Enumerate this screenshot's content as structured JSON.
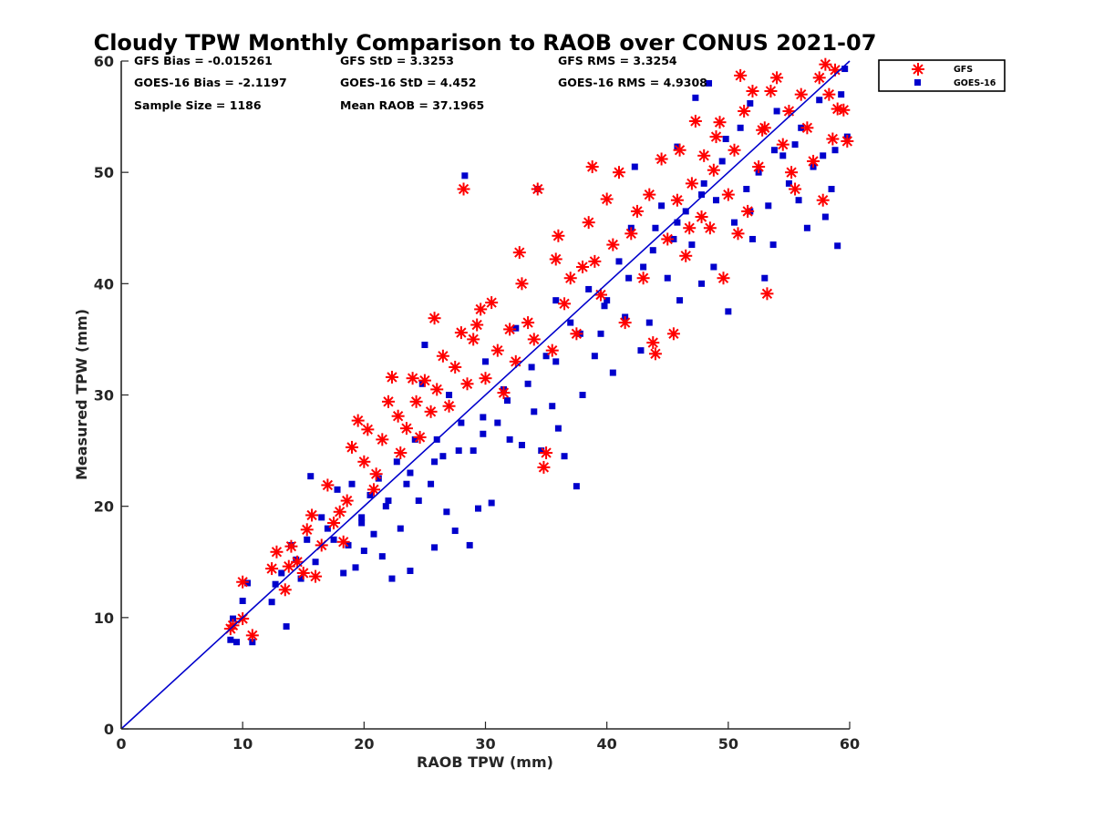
{
  "chart_data": {
    "type": "scatter",
    "title": "Cloudy TPW Monthly Comparison to RAOB over CONUS 2021-07",
    "xlabel": "RAOB TPW (mm)",
    "ylabel": "Measured TPW (mm)",
    "xlim": [
      0,
      60
    ],
    "ylim": [
      0,
      60
    ],
    "xticks": [
      "0",
      "10",
      "20",
      "30",
      "40",
      "50",
      "60"
    ],
    "yticks": [
      "0",
      "10",
      "20",
      "30",
      "40",
      "50",
      "60"
    ],
    "grid": false,
    "legend_position": "top-right-outside",
    "reference_line": {
      "type": "one-to-one",
      "color": "#0000cc",
      "from": [
        0,
        0
      ],
      "to": [
        60,
        60
      ]
    },
    "stats": {
      "gfs_bias": "GFS Bias = -0.015261",
      "goes_bias": "GOES-16 Bias = -2.1197",
      "sample_size": "Sample Size = 1186",
      "gfs_std": "GFS StD = 3.3253",
      "goes_std": "GOES-16 StD = 4.452",
      "mean_raob": "Mean RAOB = 37.1965",
      "gfs_rms": "GFS RMS = 3.3254",
      "goes_rms": "GOES-16 RMS = 4.9308"
    },
    "series": [
      {
        "name": "GFS",
        "marker": "asterisk",
        "color": "#ff0000",
        "points": [
          [
            9.0,
            9.0
          ],
          [
            9.2,
            9.3
          ],
          [
            10.0,
            13.2
          ],
          [
            10.0,
            9.9
          ],
          [
            10.8,
            8.4
          ],
          [
            12.4,
            14.4
          ],
          [
            12.8,
            15.9
          ],
          [
            13.5,
            12.5
          ],
          [
            13.8,
            14.6
          ],
          [
            14.0,
            16.4
          ],
          [
            14.5,
            15.0
          ],
          [
            15.0,
            14.0
          ],
          [
            15.3,
            17.9
          ],
          [
            15.7,
            19.2
          ],
          [
            16.0,
            13.7
          ],
          [
            16.5,
            16.5
          ],
          [
            17.0,
            21.9
          ],
          [
            17.5,
            18.5
          ],
          [
            18.0,
            19.5
          ],
          [
            18.3,
            16.8
          ],
          [
            18.6,
            20.5
          ],
          [
            19.0,
            25.3
          ],
          [
            19.5,
            27.7
          ],
          [
            20.0,
            24.0
          ],
          [
            20.3,
            26.9
          ],
          [
            20.8,
            21.5
          ],
          [
            21.0,
            22.9
          ],
          [
            21.5,
            26.0
          ],
          [
            22.0,
            29.4
          ],
          [
            22.3,
            31.6
          ],
          [
            22.8,
            28.1
          ],
          [
            23.0,
            24.8
          ],
          [
            23.5,
            27.0
          ],
          [
            24.0,
            31.5
          ],
          [
            24.3,
            29.4
          ],
          [
            24.6,
            26.2
          ],
          [
            25.0,
            31.3
          ],
          [
            25.5,
            28.5
          ],
          [
            25.8,
            36.9
          ],
          [
            26.0,
            30.5
          ],
          [
            26.5,
            33.5
          ],
          [
            27.0,
            29.0
          ],
          [
            27.5,
            32.5
          ],
          [
            28.0,
            35.6
          ],
          [
            28.2,
            48.5
          ],
          [
            28.5,
            31.0
          ],
          [
            29.0,
            35.0
          ],
          [
            29.3,
            36.3
          ],
          [
            29.6,
            37.7
          ],
          [
            30.0,
            31.5
          ],
          [
            30.5,
            38.3
          ],
          [
            31.0,
            34.0
          ],
          [
            31.5,
            30.2
          ],
          [
            32.0,
            35.9
          ],
          [
            32.5,
            33.0
          ],
          [
            32.8,
            42.8
          ],
          [
            33.0,
            40.0
          ],
          [
            33.5,
            36.5
          ],
          [
            34.0,
            35.0
          ],
          [
            34.3,
            48.5
          ],
          [
            34.8,
            23.5
          ],
          [
            35.0,
            24.8
          ],
          [
            35.5,
            34.0
          ],
          [
            35.8,
            42.2
          ],
          [
            36.0,
            44.3
          ],
          [
            36.5,
            38.2
          ],
          [
            37.0,
            40.5
          ],
          [
            37.5,
            35.5
          ],
          [
            38.0,
            41.5
          ],
          [
            38.5,
            45.5
          ],
          [
            38.8,
            50.5
          ],
          [
            39.0,
            42.0
          ],
          [
            39.5,
            39.0
          ],
          [
            40.0,
            47.6
          ],
          [
            40.5,
            43.5
          ],
          [
            41.0,
            50.0
          ],
          [
            41.5,
            36.5
          ],
          [
            42.0,
            44.5
          ],
          [
            42.5,
            46.5
          ],
          [
            43.0,
            40.5
          ],
          [
            43.5,
            48.0
          ],
          [
            43.8,
            34.7
          ],
          [
            44.0,
            33.7
          ],
          [
            44.5,
            51.2
          ],
          [
            45.0,
            44.0
          ],
          [
            45.5,
            35.5
          ],
          [
            45.8,
            47.5
          ],
          [
            46.0,
            52.0
          ],
          [
            46.5,
            42.5
          ],
          [
            47.0,
            49.0
          ],
          [
            47.3,
            54.6
          ],
          [
            47.8,
            46.0
          ],
          [
            48.0,
            51.5
          ],
          [
            48.5,
            45.0
          ],
          [
            49.0,
            53.2
          ],
          [
            49.3,
            54.5
          ],
          [
            49.6,
            40.5
          ],
          [
            50.0,
            48.0
          ],
          [
            50.5,
            52.0
          ],
          [
            51.0,
            58.7
          ],
          [
            51.3,
            55.5
          ],
          [
            51.6,
            46.5
          ],
          [
            52.0,
            57.3
          ],
          [
            52.5,
            50.5
          ],
          [
            53.0,
            54.0
          ],
          [
            53.2,
            39.1
          ],
          [
            53.5,
            57.3
          ],
          [
            54.0,
            58.5
          ],
          [
            54.5,
            52.5
          ],
          [
            55.0,
            55.5
          ],
          [
            55.5,
            48.5
          ],
          [
            56.0,
            57.0
          ],
          [
            56.5,
            54.0
          ],
          [
            57.0,
            51.0
          ],
          [
            57.5,
            58.5
          ],
          [
            58.0,
            59.7
          ],
          [
            58.3,
            57.0
          ],
          [
            58.6,
            53.0
          ],
          [
            59.0,
            55.7
          ],
          [
            59.5,
            55.6
          ],
          [
            59.8,
            52.8
          ],
          [
            58.8,
            59.2
          ],
          [
            57.8,
            47.5
          ],
          [
            55.2,
            50.0
          ],
          [
            52.8,
            53.8
          ],
          [
            50.8,
            44.5
          ],
          [
            48.8,
            50.2
          ],
          [
            46.8,
            45.0
          ]
        ]
      },
      {
        "name": "GOES-16",
        "marker": "square",
        "color": "#0000cc",
        "points": [
          [
            9.0,
            8.0
          ],
          [
            9.2,
            9.9
          ],
          [
            9.5,
            7.8
          ],
          [
            10.0,
            11.5
          ],
          [
            10.4,
            13.1
          ],
          [
            10.8,
            7.8
          ],
          [
            12.4,
            11.4
          ],
          [
            12.7,
            13.0
          ],
          [
            13.2,
            14.0
          ],
          [
            13.6,
            9.2
          ],
          [
            14.0,
            16.5
          ],
          [
            14.4,
            15.2
          ],
          [
            14.8,
            13.5
          ],
          [
            15.3,
            17.0
          ],
          [
            15.6,
            22.7
          ],
          [
            16.0,
            15.0
          ],
          [
            16.5,
            19.0
          ],
          [
            17.0,
            18.0
          ],
          [
            17.5,
            17.0
          ],
          [
            17.8,
            21.5
          ],
          [
            18.3,
            14.0
          ],
          [
            18.7,
            16.5
          ],
          [
            19.0,
            22.0
          ],
          [
            19.3,
            14.5
          ],
          [
            19.8,
            19.0
          ],
          [
            20.0,
            16.0
          ],
          [
            20.5,
            21.0
          ],
          [
            20.8,
            17.5
          ],
          [
            21.2,
            22.5
          ],
          [
            21.5,
            15.5
          ],
          [
            22.0,
            20.5
          ],
          [
            22.3,
            13.5
          ],
          [
            22.7,
            24.0
          ],
          [
            23.0,
            18.0
          ],
          [
            23.5,
            22.0
          ],
          [
            23.8,
            14.2
          ],
          [
            24.2,
            26.0
          ],
          [
            24.5,
            20.5
          ],
          [
            24.8,
            31.0
          ],
          [
            25.0,
            34.5
          ],
          [
            25.5,
            22.0
          ],
          [
            25.8,
            16.3
          ],
          [
            26.0,
            26.0
          ],
          [
            26.5,
            24.5
          ],
          [
            26.8,
            19.5
          ],
          [
            27.0,
            30.0
          ],
          [
            27.5,
            17.8
          ],
          [
            28.0,
            27.5
          ],
          [
            28.3,
            49.7
          ],
          [
            28.7,
            16.5
          ],
          [
            29.0,
            25.0
          ],
          [
            29.4,
            19.8
          ],
          [
            29.8,
            28.0
          ],
          [
            30.0,
            33.0
          ],
          [
            30.5,
            20.3
          ],
          [
            31.0,
            27.5
          ],
          [
            31.5,
            30.5
          ],
          [
            32.0,
            26.0
          ],
          [
            32.5,
            36.0
          ],
          [
            33.0,
            25.5
          ],
          [
            33.5,
            31.0
          ],
          [
            34.0,
            28.5
          ],
          [
            34.3,
            48.5
          ],
          [
            34.6,
            25.0
          ],
          [
            35.0,
            33.5
          ],
          [
            35.5,
            29.0
          ],
          [
            35.8,
            38.5
          ],
          [
            36.0,
            27.0
          ],
          [
            36.5,
            24.5
          ],
          [
            37.0,
            36.5
          ],
          [
            37.5,
            21.8
          ],
          [
            38.0,
            30.0
          ],
          [
            38.5,
            39.5
          ],
          [
            39.0,
            33.5
          ],
          [
            39.5,
            35.5
          ],
          [
            40.0,
            38.5
          ],
          [
            40.5,
            32.0
          ],
          [
            41.0,
            42.0
          ],
          [
            41.5,
            37.0
          ],
          [
            42.0,
            45.0
          ],
          [
            42.3,
            50.5
          ],
          [
            42.8,
            34.0
          ],
          [
            43.0,
            41.5
          ],
          [
            43.5,
            36.5
          ],
          [
            44.0,
            45.0
          ],
          [
            44.5,
            47.0
          ],
          [
            45.0,
            40.5
          ],
          [
            45.5,
            44.0
          ],
          [
            45.8,
            52.3
          ],
          [
            46.0,
            38.5
          ],
          [
            46.5,
            46.5
          ],
          [
            47.0,
            43.5
          ],
          [
            47.3,
            56.7
          ],
          [
            47.8,
            40.0
          ],
          [
            48.0,
            49.0
          ],
          [
            48.4,
            58.0
          ],
          [
            48.8,
            41.5
          ],
          [
            49.0,
            47.5
          ],
          [
            49.5,
            51.0
          ],
          [
            50.0,
            37.5
          ],
          [
            50.5,
            45.5
          ],
          [
            51.0,
            54.0
          ],
          [
            51.5,
            48.5
          ],
          [
            51.8,
            56.2
          ],
          [
            52.0,
            44.0
          ],
          [
            52.5,
            50.0
          ],
          [
            53.0,
            40.5
          ],
          [
            53.3,
            47.0
          ],
          [
            53.7,
            43.5
          ],
          [
            54.0,
            55.5
          ],
          [
            54.5,
            51.5
          ],
          [
            55.0,
            49.0
          ],
          [
            55.5,
            52.5
          ],
          [
            56.0,
            54.0
          ],
          [
            56.5,
            45.0
          ],
          [
            57.0,
            50.5
          ],
          [
            57.5,
            56.5
          ],
          [
            58.0,
            46.0
          ],
          [
            58.5,
            48.5
          ],
          [
            58.8,
            52.0
          ],
          [
            59.0,
            43.4
          ],
          [
            59.3,
            57.0
          ],
          [
            59.6,
            59.3
          ],
          [
            59.8,
            53.2
          ],
          [
            57.8,
            51.5
          ],
          [
            55.8,
            47.5
          ],
          [
            53.8,
            52.0
          ],
          [
            51.8,
            46.5
          ],
          [
            49.8,
            53.0
          ],
          [
            47.8,
            48.0
          ],
          [
            45.8,
            45.5
          ],
          [
            43.8,
            43.0
          ],
          [
            41.8,
            40.5
          ],
          [
            39.8,
            38.0
          ],
          [
            37.8,
            35.5
          ],
          [
            35.8,
            33.0
          ],
          [
            33.8,
            32.5
          ],
          [
            31.8,
            29.5
          ],
          [
            29.8,
            26.5
          ],
          [
            27.8,
            25.0
          ],
          [
            25.8,
            24.0
          ],
          [
            23.8,
            23.0
          ],
          [
            21.8,
            20.0
          ],
          [
            19.8,
            18.5
          ]
        ]
      }
    ]
  }
}
